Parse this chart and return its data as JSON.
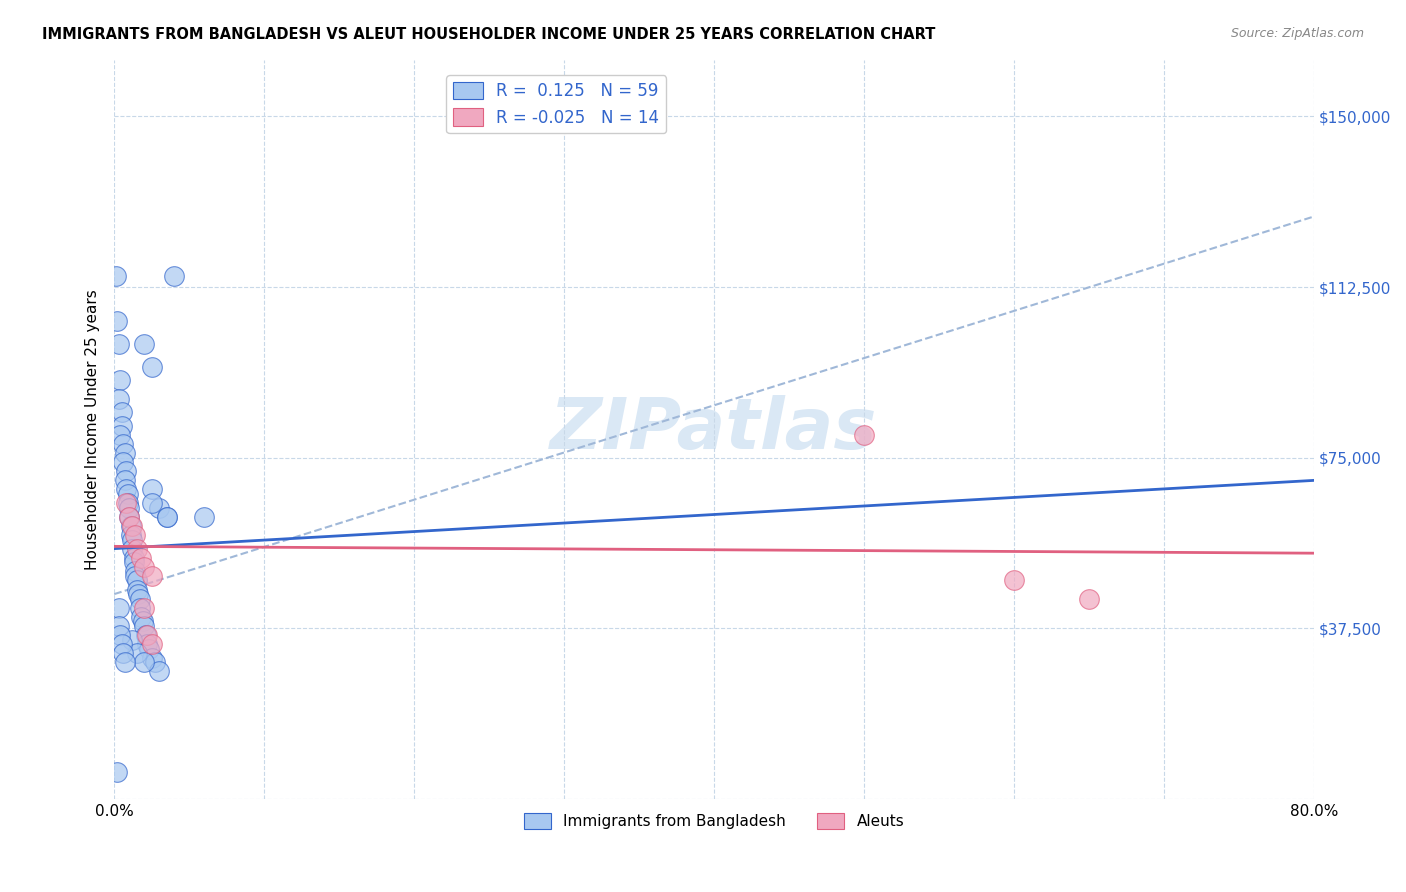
{
  "title": "IMMIGRANTS FROM BANGLADESH VS ALEUT HOUSEHOLDER INCOME UNDER 25 YEARS CORRELATION CHART",
  "source": "Source: ZipAtlas.com",
  "ylabel": "Householder Income Under 25 years",
  "x_min": 0.0,
  "x_max": 0.8,
  "y_min": 0,
  "y_max": 162500,
  "y_ticks": [
    0,
    37500,
    75000,
    112500,
    150000
  ],
  "y_tick_labels": [
    "",
    "$37,500",
    "$75,000",
    "$112,500",
    "$150,000"
  ],
  "x_ticks": [
    0.0,
    0.1,
    0.2,
    0.3,
    0.4,
    0.5,
    0.6,
    0.7,
    0.8
  ],
  "x_tick_labels": [
    "0.0%",
    "",
    "",
    "",
    "",
    "",
    "",
    "",
    "80.0%"
  ],
  "legend1_R": "0.125",
  "legend1_N": "59",
  "legend2_R": "-0.025",
  "legend2_N": "14",
  "color_blue": "#a8c8f0",
  "color_pink": "#f0a8c0",
  "line_blue": "#3366cc",
  "line_pink": "#e06080",
  "line_dashed": "#a0b8d8",
  "watermark_color": "#dae8f5",
  "blue_line_x0": 0.0,
  "blue_line_y0": 55000,
  "blue_line_x1": 0.8,
  "blue_line_y1": 70000,
  "pink_line_x0": 0.0,
  "pink_line_y0": 55500,
  "pink_line_x1": 0.8,
  "pink_line_y1": 54000,
  "dash_line_x0": 0.0,
  "dash_line_y0": 45000,
  "dash_line_x1": 0.8,
  "dash_line_y1": 128000,
  "blue_scatter": [
    [
      0.001,
      115000
    ],
    [
      0.002,
      105000
    ],
    [
      0.003,
      100000
    ],
    [
      0.004,
      92000
    ],
    [
      0.003,
      88000
    ],
    [
      0.005,
      85000
    ],
    [
      0.005,
      82000
    ],
    [
      0.004,
      80000
    ],
    [
      0.006,
      78000
    ],
    [
      0.007,
      76000
    ],
    [
      0.006,
      74000
    ],
    [
      0.008,
      72000
    ],
    [
      0.007,
      70000
    ],
    [
      0.008,
      68000
    ],
    [
      0.009,
      67000
    ],
    [
      0.009,
      65000
    ],
    [
      0.01,
      64000
    ],
    [
      0.01,
      62000
    ],
    [
      0.011,
      60000
    ],
    [
      0.011,
      58000
    ],
    [
      0.012,
      57000
    ],
    [
      0.012,
      55000
    ],
    [
      0.013,
      53000
    ],
    [
      0.013,
      52000
    ],
    [
      0.014,
      50000
    ],
    [
      0.014,
      49000
    ],
    [
      0.015,
      48000
    ],
    [
      0.015,
      46000
    ],
    [
      0.016,
      45000
    ],
    [
      0.017,
      44000
    ],
    [
      0.017,
      42000
    ],
    [
      0.018,
      40000
    ],
    [
      0.019,
      39000
    ],
    [
      0.02,
      38000
    ],
    [
      0.021,
      36000
    ],
    [
      0.022,
      34000
    ],
    [
      0.023,
      33000
    ],
    [
      0.025,
      31000
    ],
    [
      0.027,
      30000
    ],
    [
      0.03,
      28000
    ],
    [
      0.012,
      35000
    ],
    [
      0.015,
      32000
    ],
    [
      0.02,
      30000
    ],
    [
      0.025,
      68000
    ],
    [
      0.03,
      64000
    ],
    [
      0.035,
      62000
    ],
    [
      0.025,
      65000
    ],
    [
      0.035,
      62000
    ],
    [
      0.02,
      100000
    ],
    [
      0.025,
      95000
    ],
    [
      0.04,
      115000
    ],
    [
      0.06,
      62000
    ],
    [
      0.002,
      6000
    ],
    [
      0.003,
      42000
    ],
    [
      0.003,
      38000
    ],
    [
      0.004,
      36000
    ],
    [
      0.005,
      34000
    ],
    [
      0.006,
      32000
    ],
    [
      0.007,
      30000
    ]
  ],
  "pink_scatter": [
    [
      0.008,
      65000
    ],
    [
      0.01,
      62000
    ],
    [
      0.012,
      60000
    ],
    [
      0.014,
      58000
    ],
    [
      0.015,
      55000
    ],
    [
      0.018,
      53000
    ],
    [
      0.02,
      51000
    ],
    [
      0.025,
      49000
    ],
    [
      0.02,
      42000
    ],
    [
      0.022,
      36000
    ],
    [
      0.025,
      34000
    ],
    [
      0.5,
      80000
    ],
    [
      0.6,
      48000
    ],
    [
      0.65,
      44000
    ]
  ]
}
